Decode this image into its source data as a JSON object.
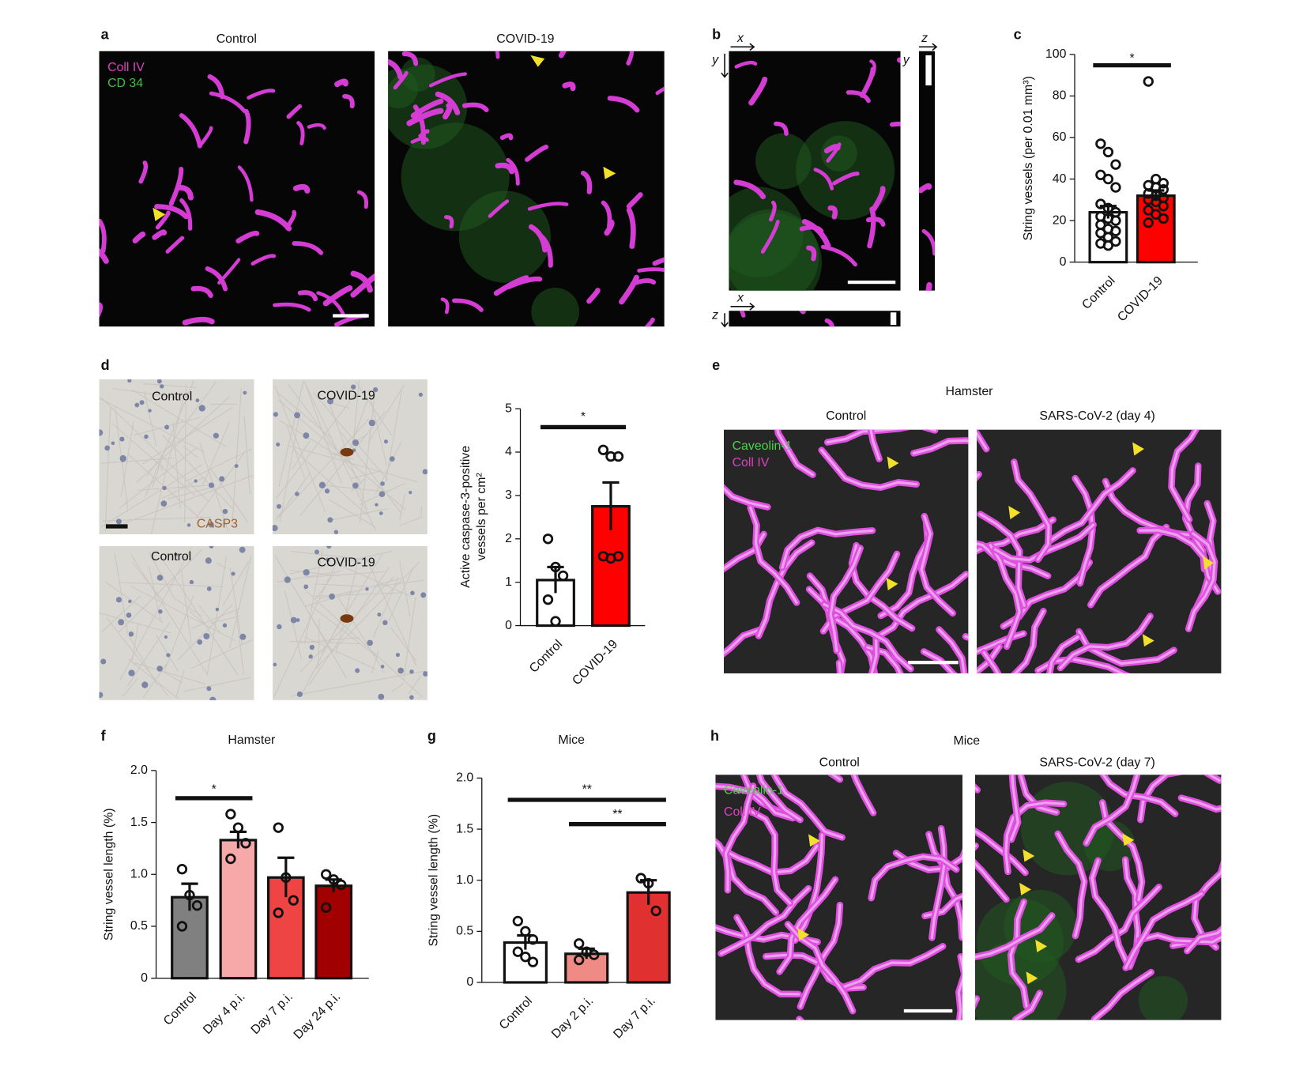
{
  "panels": {
    "a": {
      "letter": "a",
      "control": "Control",
      "covid": "COVID-19",
      "legend": [
        "Coll IV",
        "CD 34"
      ]
    },
    "b": {
      "letter": "b",
      "axis_labels": [
        "x",
        "y",
        "z",
        "y",
        "x",
        "z"
      ]
    },
    "c": {
      "letter": "c"
    },
    "d": {
      "letter": "d",
      "images": [
        "Control",
        "COVID-19",
        "Control",
        "COVID-19"
      ],
      "stain": "CASP3"
    },
    "e": {
      "letter": "e",
      "title": "Hamster",
      "control": "Control",
      "infected": "SARS-CoV-2 (day 4)",
      "legend": [
        "Caveolin-1",
        "Coll IV"
      ]
    },
    "f": {
      "letter": "f"
    },
    "g": {
      "letter": "g"
    },
    "h": {
      "letter": "h",
      "title": "Mice",
      "control": "Control",
      "infected": "SARS-CoV-2 (day 7)",
      "legend": [
        "Caveolin-1",
        "Coll IV"
      ]
    }
  },
  "chart_data": [
    {
      "type": "bar",
      "ylabel": [
        "String vessels (per 0.01 mm³)"
      ],
      "categories": [
        "Control",
        "COVID-19"
      ],
      "values": [
        24,
        32
      ],
      "errors": [
        3,
        2.5
      ],
      "colors": [
        "#ffffff",
        "#ff0000"
      ],
      "points": [
        [
          57,
          53,
          47,
          42,
          40,
          36,
          28,
          26,
          24,
          22,
          21,
          20,
          18,
          16,
          15,
          14,
          12,
          10,
          9,
          8
        ],
        [
          87,
          40,
          38,
          37,
          36,
          35,
          33,
          32,
          31,
          30,
          29,
          27,
          25,
          23,
          21,
          19
        ]
      ],
      "ylim": [
        0,
        100
      ],
      "yticks": [
        0,
        20,
        40,
        60,
        80,
        100
      ],
      "annotations": [
        {
          "text": "*",
          "between": [
            "Control",
            "COVID-19"
          ]
        }
      ]
    },
    {
      "type": "bar",
      "ylabel": [
        "Active caspase-3-positive",
        "vessels per cm²"
      ],
      "categories": [
        "Control",
        "COVID-19"
      ],
      "values": [
        1.05,
        2.75
      ],
      "errors": [
        0.3,
        0.55
      ],
      "colors": [
        "#ffffff",
        "#ff0000"
      ],
      "points": [
        [
          2.0,
          1.35,
          1.15,
          0.6,
          0.1
        ],
        [
          4.05,
          3.9,
          3.9,
          1.6,
          1.55,
          1.6
        ]
      ],
      "ylim": [
        0,
        5
      ],
      "yticks": [
        0,
        1,
        2,
        3,
        4,
        5
      ],
      "annotations": [
        {
          "text": "*",
          "between": [
            "Control",
            "COVID-19"
          ]
        }
      ]
    },
    {
      "type": "bar",
      "title": "Hamster",
      "ylabel": [
        "String vessel length (%)"
      ],
      "categories": [
        "Control",
        "Day 4 p.i.",
        "Day 7 p.i.",
        "Day 24 p.i."
      ],
      "values": [
        0.78,
        1.33,
        0.97,
        0.89
      ],
      "errors": [
        0.13,
        0.08,
        0.19,
        0.06
      ],
      "colors": [
        "#808080",
        "#f7a8a8",
        "#ee4444",
        "#a00000"
      ],
      "points": [
        [
          1.05,
          0.8,
          0.7,
          0.5
        ],
        [
          1.58,
          1.45,
          1.3,
          1.15
        ],
        [
          1.45,
          0.97,
          0.75,
          0.63
        ],
        [
          1.0,
          0.95,
          0.9,
          0.68
        ]
      ],
      "ylim": [
        0,
        2
      ],
      "yticks": [
        0,
        0.5,
        {
          "value": 1,
          "label": "1.0"
        },
        1.5,
        {
          "value": 2,
          "label": "2.0"
        }
      ],
      "annotations": [
        {
          "text": "*",
          "between": [
            "Control",
            "Day 4 p.i."
          ]
        }
      ]
    },
    {
      "type": "bar",
      "title": "Mice",
      "ylabel": [
        "String vessel length (%)"
      ],
      "categories": [
        "Control",
        "Day 2 p.i.",
        "Day 7 p.i."
      ],
      "values": [
        0.39,
        0.28,
        0.88
      ],
      "errors": [
        0.07,
        0.05,
        0.12
      ],
      "colors": [
        "#ffffff",
        "#f08a84",
        "#e03030"
      ],
      "points": [
        [
          0.6,
          0.5,
          0.42,
          0.3,
          0.25,
          0.2
        ],
        [
          0.38,
          0.3,
          0.27,
          0.22
        ],
        [
          1.02,
          0.97,
          0.7
        ]
      ],
      "ylim": [
        0,
        2
      ],
      "yticks": [
        0,
        0.5,
        {
          "value": 1,
          "label": "1.0"
        },
        1.5,
        {
          "value": 2,
          "label": "2.0"
        }
      ],
      "annotations": [
        {
          "text": "**",
          "between": [
            "Control",
            "Day 7 p.i."
          ]
        },
        {
          "text": "**",
          "between": [
            "Day 2 p.i.",
            "Day 7 p.i."
          ]
        }
      ]
    }
  ]
}
